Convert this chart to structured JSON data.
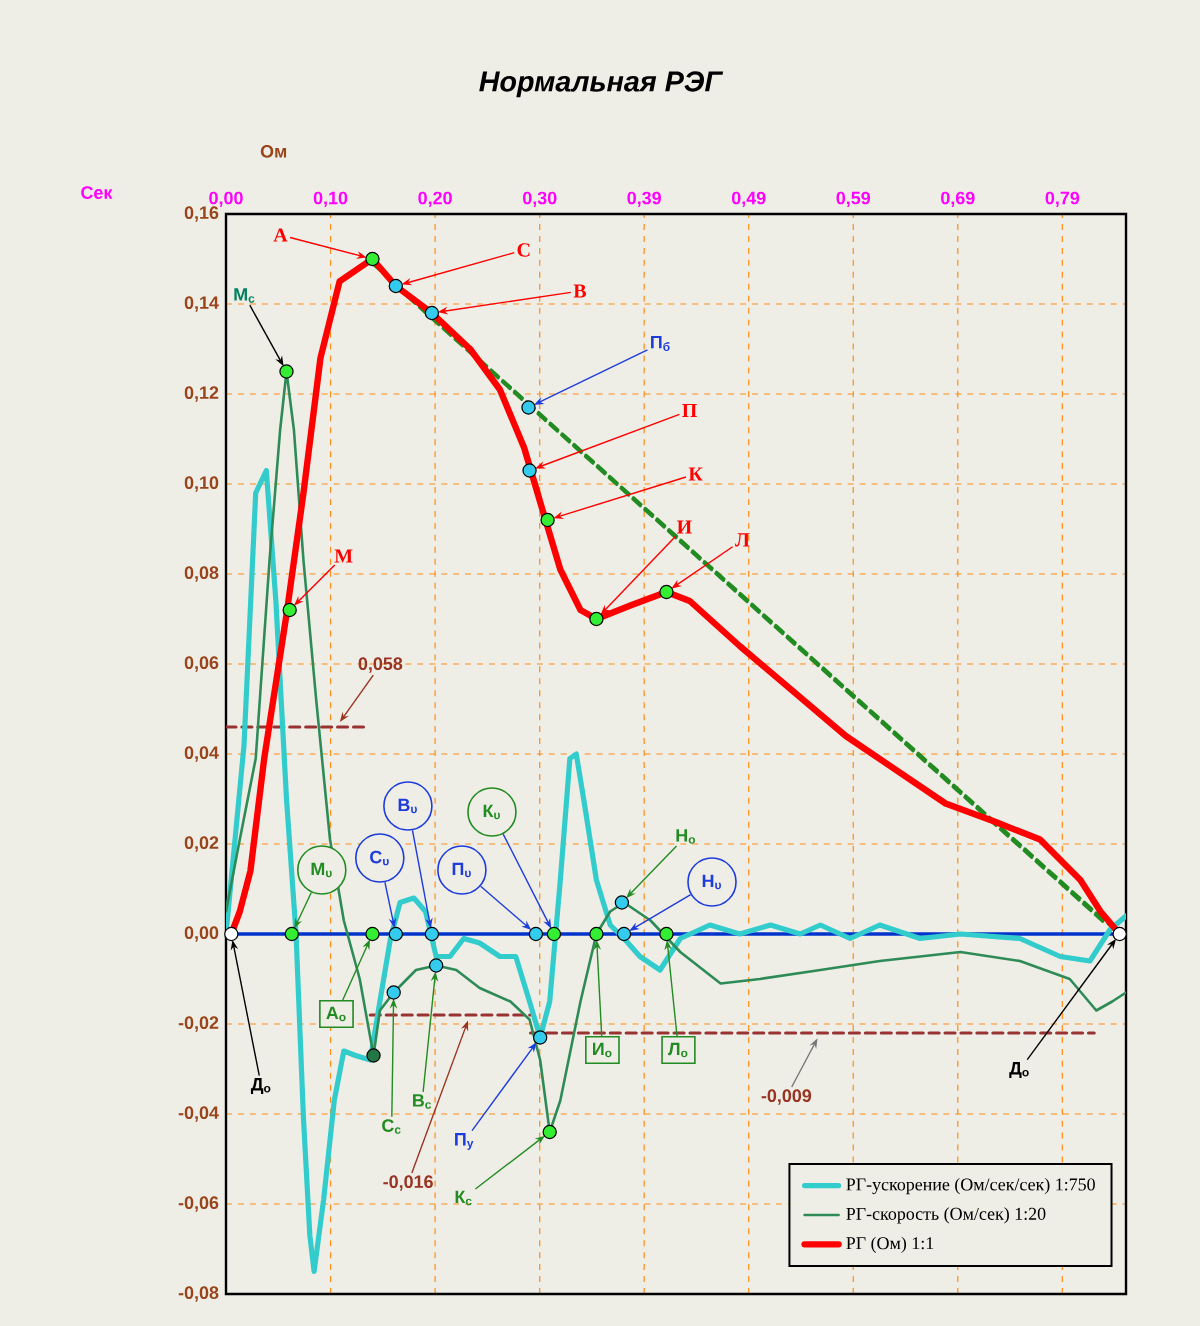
{
  "chart_data": {
    "type": "line",
    "title": "Нормальная  РЭГ",
    "xlabel": "Сек",
    "ylabel": "Ом",
    "xlim": [
      0,
      0.848
    ],
    "ylim": [
      -0.08,
      0.16
    ],
    "xticks": [
      {
        "value": 0,
        "label": "0,00"
      },
      {
        "value": 0.0985,
        "label": "0,10"
      },
      {
        "value": 0.197,
        "label": "0,20"
      },
      {
        "value": 0.2956,
        "label": "0,30"
      },
      {
        "value": 0.394,
        "label": "0,39"
      },
      {
        "value": 0.4925,
        "label": "0,49"
      },
      {
        "value": 0.591,
        "label": "0,59"
      },
      {
        "value": 0.6895,
        "label": "0,69"
      },
      {
        "value": 0.788,
        "label": "0,79"
      }
    ],
    "yticks": [
      {
        "value": -0.08,
        "label": "-0,08"
      },
      {
        "value": -0.06,
        "label": "-0,06"
      },
      {
        "value": -0.04,
        "label": "-0,04"
      },
      {
        "value": -0.02,
        "label": "-0,02"
      },
      {
        "value": 0,
        "label": "0,00"
      },
      {
        "value": 0.02,
        "label": "0,02"
      },
      {
        "value": 0.04,
        "label": "0,04"
      },
      {
        "value": 0.06,
        "label": "0,06"
      },
      {
        "value": 0.08,
        "label": "0,08"
      },
      {
        "value": 0.1,
        "label": "0,10"
      },
      {
        "value": 0.12,
        "label": "0,12"
      },
      {
        "value": 0.14,
        "label": "0,14"
      },
      {
        "value": 0.16,
        "label": "0,16"
      }
    ],
    "grid": true,
    "legend": "bottom right",
    "ref_lines": [
      {
        "axis": "y",
        "value": 0,
        "color": "#0033cc"
      }
    ],
    "series": [
      {
        "type": "line",
        "color": "#228b22",
        "line_style": "dashed",
        "x": [
          0.138,
          0.842
        ],
        "values": [
          0.149,
          0
        ]
      },
      {
        "type": "line",
        "color": "#228b22",
        "line_style": "dashed",
        "x": [
          0.16,
          0.83
        ],
        "values": [
          0.144,
          0.002
        ]
      },
      {
        "type": "line",
        "color": "#993333",
        "line_style": "dashed",
        "x": [
          0,
          0.134
        ],
        "values": [
          0.046,
          0.046
        ]
      },
      {
        "type": "line",
        "color": "#993333",
        "line_style": "dashed",
        "x": [
          0.136,
          0.287
        ],
        "values": [
          -0.018,
          -0.018
        ]
      },
      {
        "type": "line",
        "color": "#993333",
        "line_style": "dashed",
        "x": [
          0.287,
          0.818
        ],
        "values": [
          -0.022,
          -0.022
        ]
      },
      {
        "name": "РГ-ускорение  (Ом/сек/сек) 1:750",
        "color": "#33cccc",
        "x": [
          0,
          0.017,
          0.028,
          0.038,
          0.047,
          0.057,
          0.066,
          0.073,
          0.079,
          0.083,
          0.092,
          0.102,
          0.111,
          0.122,
          0.136,
          0.145,
          0.155,
          0.164,
          0.177,
          0.188,
          0.198,
          0.211,
          0.224,
          0.239,
          0.258,
          0.273,
          0.286,
          0.296,
          0.305,
          0.315,
          0.324,
          0.33,
          0.337,
          0.349,
          0.362,
          0.375,
          0.39,
          0.409,
          0.428,
          0.456,
          0.484,
          0.513,
          0.541,
          0.56,
          0.588,
          0.616,
          0.654,
          0.692,
          0.748,
          0.786,
          0.814,
          0.833,
          0.848
        ],
        "values": [
          0,
          0.042,
          0.098,
          0.103,
          0.074,
          0.03,
          0,
          -0.041,
          -0.067,
          -0.075,
          -0.059,
          -0.037,
          -0.026,
          -0.027,
          -0.028,
          -0.015,
          -0.001,
          0.007,
          0.008,
          0.005,
          -0.005,
          -0.005,
          -0.001,
          -0.002,
          -0.005,
          -0.005,
          -0.015,
          -0.023,
          -0.015,
          0.012,
          0.039,
          0.04,
          0.03,
          0.012,
          0.002,
          -0.001,
          -0.005,
          -0.008,
          -0.001,
          0.002,
          0,
          0.002,
          0,
          0.002,
          -0.001,
          0.002,
          -0.001,
          0,
          -0.001,
          -0.005,
          -0.006,
          0.001,
          0.004
        ]
      },
      {
        "name": "РГ-скорость (Ом/сек) 1:20",
        "color": "#2e8b57",
        "x": [
          0,
          0.013,
          0.028,
          0.041,
          0.051,
          0.057,
          0.064,
          0.073,
          0.085,
          0.098,
          0.111,
          0.126,
          0.139,
          0.145,
          0.158,
          0.179,
          0.198,
          0.217,
          0.239,
          0.268,
          0.286,
          0.296,
          0.305,
          0.315,
          0.334,
          0.349,
          0.362,
          0.375,
          0.4,
          0.428,
          0.466,
          0.503,
          0.56,
          0.616,
          0.692,
          0.748,
          0.795,
          0.82,
          0.835,
          0.848
        ],
        "values": [
          0.005,
          0.021,
          0.039,
          0.083,
          0.112,
          0.125,
          0.112,
          0.083,
          0.052,
          0.021,
          0.003,
          -0.01,
          -0.027,
          -0.017,
          -0.013,
          -0.008,
          -0.007,
          -0.008,
          -0.012,
          -0.015,
          -0.019,
          -0.028,
          -0.044,
          -0.037,
          -0.015,
          0,
          0.005,
          0.007,
          0.003,
          -0.004,
          -0.011,
          -0.01,
          -0.008,
          -0.006,
          -0.004,
          -0.006,
          -0.01,
          -0.017,
          -0.015,
          -0.013
        ]
      },
      {
        "name": "РГ (Ом) 1:1",
        "color": "#ff0000",
        "x": [
          0.005,
          0.013,
          0.023,
          0.036,
          0.057,
          0.073,
          0.089,
          0.107,
          0.138,
          0.16,
          0.194,
          0.23,
          0.258,
          0.281,
          0.296,
          0.315,
          0.334,
          0.349,
          0.381,
          0.415,
          0.437,
          0.484,
          0.584,
          0.678,
          0.724,
          0.767,
          0.805,
          0.824,
          0.842
        ],
        "values": [
          0,
          0.005,
          0.014,
          0.039,
          0.071,
          0.098,
          0.128,
          0.145,
          0.15,
          0.144,
          0.138,
          0.13,
          0.121,
          0.108,
          0.096,
          0.081,
          0.072,
          0.07,
          0.073,
          0.076,
          0.074,
          0.064,
          0.044,
          0.029,
          0.025,
          0.021,
          0.012,
          0.005,
          0
        ]
      },
      {
        "type": "scatter",
        "marker": "circle",
        "color": "#33ee33",
        "x": [
          0.06,
          0.138,
          0.303,
          0.349,
          0.415,
          0.057,
          0.062,
          0.138,
          0.309,
          0.349,
          0.415,
          0.305
        ],
        "values": [
          0.072,
          0.15,
          0.092,
          0.07,
          0.076,
          0.125,
          0,
          0,
          0,
          0,
          0,
          -0.044
        ]
      },
      {
        "type": "scatter",
        "marker": "circle",
        "color": "#33ccee",
        "x": [
          0.16,
          0.194,
          0.285,
          0.286,
          0.16,
          0.194,
          0.292,
          0.375,
          0.158,
          0.198,
          0.296,
          0.373
        ],
        "values": [
          0.144,
          0.138,
          0.117,
          0.103,
          0,
          0,
          0,
          0,
          -0.013,
          -0.007,
          -0.023,
          0.007
        ]
      },
      {
        "type": "scatter",
        "marker": "circle",
        "color": "#ffffff",
        "x": [
          0.005,
          0.842
        ],
        "values": [
          0,
          0
        ]
      },
      {
        "type": "scatter",
        "marker": "circle",
        "color": "#227744",
        "x": [
          0.139
        ],
        "values": [
          -0.027
        ]
      }
    ],
    "annotations": [
      {
        "text": "А",
        "x": 0.138,
        "y": 0.15
      },
      {
        "text": "С",
        "x": 0.16,
        "y": 0.144
      },
      {
        "text": "В",
        "x": 0.194,
        "y": 0.138
      },
      {
        "text": "П$_{б}$",
        "x": 0.285,
        "y": 0.117
      },
      {
        "text": "П",
        "x": 0.286,
        "y": 0.103
      },
      {
        "text": "К",
        "x": 0.303,
        "y": 0.092
      },
      {
        "text": "И",
        "x": 0.349,
        "y": 0.07
      },
      {
        "text": "Л",
        "x": 0.415,
        "y": 0.076
      },
      {
        "text": "М",
        "x": 0.06,
        "y": 0.072
      },
      {
        "text": "М$_{с}$",
        "x": 0.057,
        "y": 0.125
      },
      {
        "text": "Д$_{о}$",
        "x": 0.005,
        "y": 0
      },
      {
        "text": "Д$_{о}$",
        "x": 0.842,
        "y": 0
      },
      {
        "text": "М$_{υ}$",
        "x": 0.062,
        "y": 0
      },
      {
        "text": "С$_{υ}$",
        "x": 0.16,
        "y": 0
      },
      {
        "text": "В$_{υ}$",
        "x": 0.194,
        "y": 0
      },
      {
        "text": "П$_{υ}$",
        "x": 0.292,
        "y": 0
      },
      {
        "text": "К$_{υ}$",
        "x": 0.309,
        "y": 0
      },
      {
        "text": "Н$_{υ}$",
        "x": 0.375,
        "y": 0
      },
      {
        "text": "Н$_{о}$",
        "x": 0.373,
        "y": 0.007
      },
      {
        "text": "А$_{о}$",
        "x": 0.138,
        "y": 0
      },
      {
        "text": "С$_{с}$",
        "x": 0.158,
        "y": -0.013
      },
      {
        "text": "В$_{с}$",
        "x": 0.198,
        "y": -0.007
      },
      {
        "text": "П$_{у}$",
        "x": 0.296,
        "y": -0.023
      },
      {
        "text": "К$_{с}$",
        "x": 0.305,
        "y": -0.044
      },
      {
        "text": "И$_{о}$",
        "x": 0.349,
        "y": 0
      },
      {
        "text": "Л$_{о}$",
        "x": 0.415,
        "y": 0
      },
      {
        "text": "0,058",
        "x": 0.104,
        "y": 0.046
      },
      {
        "text": "-0,016",
        "x": 0.23,
        "y": -0.018
      },
      {
        "text": "-0,009",
        "x": 0.56,
        "y": -0.022
      }
    ]
  }
}
